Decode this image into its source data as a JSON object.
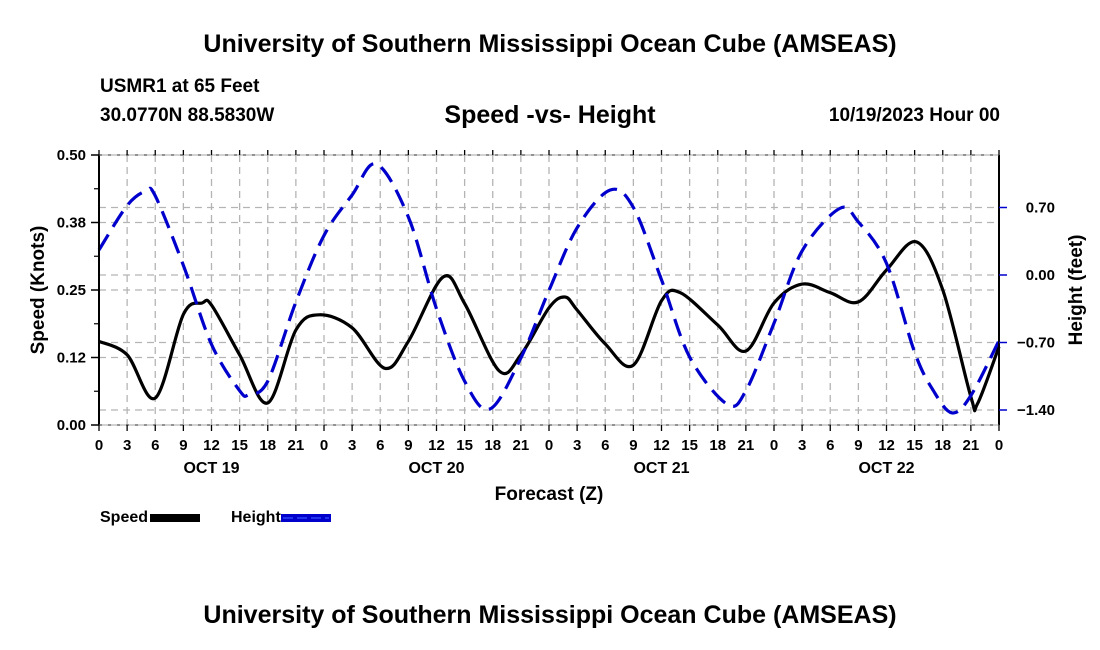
{
  "header": {
    "title": "University of Southern Mississippi Ocean Cube (AMSEAS)",
    "station": "USMR1 at 65 Feet",
    "coordinates": "30.0770N  88.5830W",
    "subtitle": "Speed -vs- Height",
    "run_time": "10/19/2023 Hour 00"
  },
  "footer": {
    "title": "University of Southern Mississippi Ocean Cube (AMSEAS)"
  },
  "legend": {
    "speed_label": "Speed",
    "height_label": "Height"
  },
  "colors": {
    "speed": "#000000",
    "height": "#0000cc",
    "grid": "#b4b4b4"
  },
  "chart_data": {
    "type": "line",
    "title": "Speed -vs- Height",
    "xlabel": "Forecast (Z)",
    "ylabel": "Speed (Knots)",
    "y2label": "Height (feet)",
    "xlim": [
      0,
      96
    ],
    "ylim": [
      0,
      0.5
    ],
    "y2lim": [
      -1.4,
      1.4
    ],
    "grid": true,
    "legend_position": "bottom-left",
    "x_tick_labels": [
      "0",
      "3",
      "6",
      "9",
      "12",
      "15",
      "18",
      "21",
      "0",
      "3",
      "6",
      "9",
      "12",
      "15",
      "18",
      "21",
      "0",
      "3",
      "6",
      "9",
      "12",
      "15",
      "18",
      "21",
      "0",
      "3",
      "6",
      "9",
      "12",
      "15",
      "18",
      "21",
      "0"
    ],
    "x_ticks_hours": [
      0,
      3,
      6,
      9,
      12,
      15,
      18,
      21,
      24,
      27,
      30,
      33,
      36,
      39,
      42,
      45,
      48,
      51,
      54,
      57,
      60,
      63,
      66,
      69,
      72,
      75,
      78,
      81,
      84,
      87,
      90,
      93,
      96
    ],
    "day_labels": [
      {
        "label": "OCT 19",
        "center_hour": 12
      },
      {
        "label": "OCT 20",
        "center_hour": 36
      },
      {
        "label": "OCT 21",
        "center_hour": 60
      },
      {
        "label": "OCT 22",
        "center_hour": 84
      }
    ],
    "y_ticks": [
      {
        "value": 0.0,
        "label": "0.00"
      },
      {
        "value": 0.125,
        "label": "0.12"
      },
      {
        "value": 0.25,
        "label": "0.25"
      },
      {
        "value": 0.375,
        "label": "0.38"
      },
      {
        "value": 0.5,
        "label": "0.50"
      }
    ],
    "y2_ticks": [
      {
        "value": 0.7,
        "label": "0.70"
      },
      {
        "value": 0.0,
        "label": "0.00"
      },
      {
        "value": -0.7,
        "label": "−0.70"
      },
      {
        "value": -1.4,
        "label": "−1.40"
      }
    ],
    "series": [
      {
        "name": "Speed",
        "axis": "left",
        "style": "solid",
        "x": [
          0,
          3,
          6,
          9,
          11,
          12,
          15,
          18,
          21,
          23.5,
          27,
          30.5,
          33,
          36.7,
          39,
          42.7,
          45,
          48,
          49.7,
          51,
          54,
          57,
          60,
          62,
          66,
          69,
          72,
          75,
          78,
          81,
          84,
          87.2,
          90,
          93,
          93.7,
          96
        ],
        "values": [
          0.155,
          0.13,
          0.05,
          0.205,
          0.226,
          0.222,
          0.13,
          0.041,
          0.176,
          0.204,
          0.18,
          0.105,
          0.155,
          0.274,
          0.225,
          0.1,
          0.13,
          0.217,
          0.237,
          0.213,
          0.15,
          0.111,
          0.23,
          0.245,
          0.185,
          0.137,
          0.226,
          0.261,
          0.245,
          0.228,
          0.287,
          0.339,
          0.25,
          0.052,
          0.039,
          0.145
        ]
      },
      {
        "name": "Height",
        "axis": "right",
        "style": "dashed",
        "x": [
          0,
          3,
          5,
          6,
          9,
          12,
          15,
          16,
          18,
          21,
          24,
          27,
          29.6,
          33,
          36,
          39,
          41.7,
          45,
          48,
          51,
          54.5,
          57,
          60,
          63,
          67,
          69,
          72,
          75,
          79,
          81,
          84,
          87,
          89,
          91,
          93,
          96
        ],
        "values": [
          0.26,
          0.72,
          0.87,
          0.82,
          0.1,
          -0.72,
          -1.2,
          -1.24,
          -1.1,
          -0.28,
          0.41,
          0.83,
          1.15,
          0.6,
          -0.35,
          -1.1,
          -1.39,
          -0.86,
          -0.16,
          0.49,
          0.88,
          0.7,
          -0.05,
          -0.85,
          -1.34,
          -1.2,
          -0.5,
          0.25,
          0.69,
          0.55,
          0.12,
          -0.8,
          -1.2,
          -1.43,
          -1.25,
          -0.68
        ]
      }
    ]
  }
}
